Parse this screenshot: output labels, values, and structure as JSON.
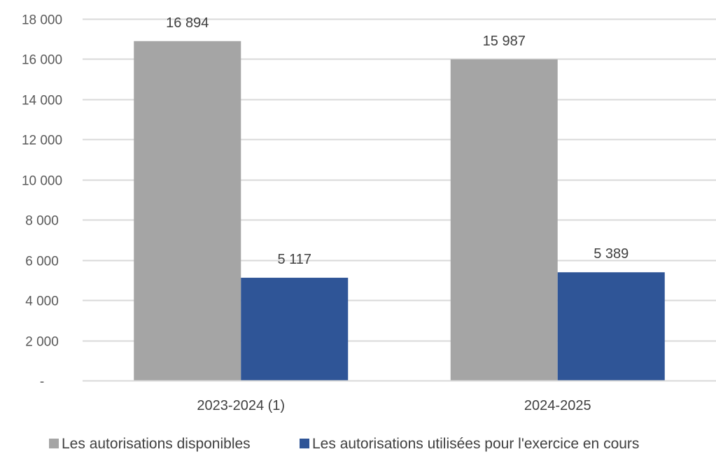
{
  "chart_data": {
    "type": "bar",
    "categories": [
      "2023-2024 (1)",
      "2024-2025"
    ],
    "series": [
      {
        "name": "Les autorisations disponibles",
        "values": [
          16894,
          15987
        ],
        "value_labels": [
          "16 894",
          "15 987"
        ],
        "color": "#a5a5a5"
      },
      {
        "name": "Les autorisations utilisées pour l'exercice en cours",
        "values": [
          5117,
          5389
        ],
        "value_labels": [
          "5 117",
          "5 389"
        ],
        "color": "#2f5597"
      }
    ],
    "ylim": [
      0,
      18000
    ],
    "y_ticks": [
      0,
      2000,
      4000,
      6000,
      8000,
      10000,
      12000,
      14000,
      16000,
      18000
    ],
    "y_tick_labels": [
      "-",
      "2 000",
      "4 000",
      "6 000",
      "8 000",
      "10 000",
      "12 000",
      "14 000",
      "16 000",
      "18 000"
    ],
    "grid": true,
    "gridline_color": "#d9d9d9",
    "legend_position": "bottom"
  }
}
